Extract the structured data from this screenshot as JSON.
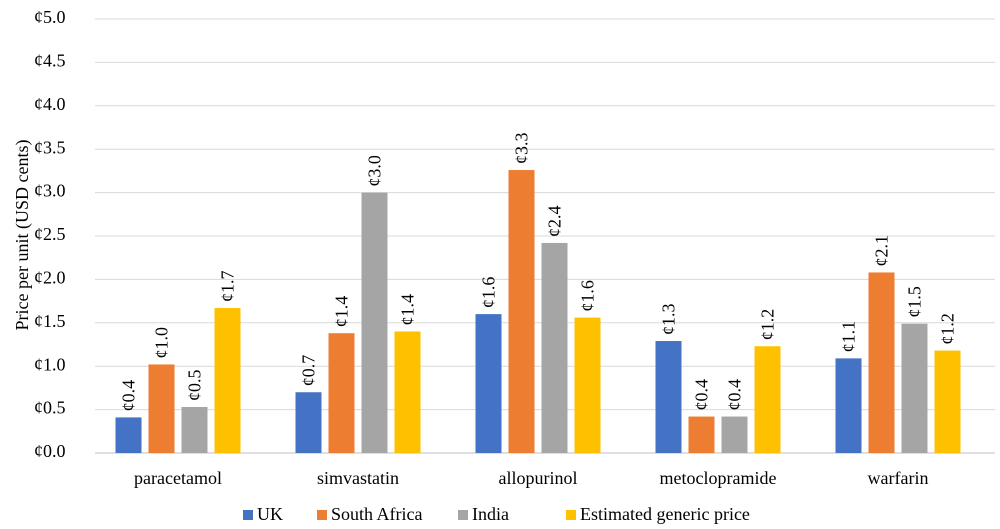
{
  "chart_data": {
    "type": "bar",
    "title": "",
    "partial_title": "",
    "ylabel": "Price per unit (USD cents)",
    "xlabel": "",
    "ylim": [
      0,
      5
    ],
    "ytick_step": 0.5,
    "value_prefix": "¢",
    "grid": true,
    "legend_position": "bottom",
    "categories": [
      "paracetamol",
      "simvastatin",
      "allopurinol",
      "metoclopramide",
      "warfarin"
    ],
    "series": [
      {
        "name": "UK",
        "color": "#4472C4",
        "values": [
          0.4,
          0.7,
          1.6,
          1.3,
          1.1
        ]
      },
      {
        "name": "South Africa",
        "color": "#ED7D31",
        "values": [
          1.0,
          1.4,
          3.3,
          0.4,
          2.1
        ]
      },
      {
        "name": "India",
        "color": "#A5A5A5",
        "values": [
          0.5,
          3.0,
          2.4,
          0.4,
          1.5
        ]
      },
      {
        "name": "Estimated generic price",
        "color": "#FFC000",
        "values": [
          1.7,
          1.4,
          1.6,
          1.2,
          1.2
        ]
      }
    ],
    "bar_heights": [
      [
        0.41,
        0.7,
        1.6,
        1.29,
        1.09
      ],
      [
        1.02,
        1.38,
        3.26,
        0.42,
        2.08
      ],
      [
        0.53,
        3.0,
        2.42,
        0.42,
        1.49
      ],
      [
        1.67,
        1.4,
        1.56,
        1.23,
        1.18
      ]
    ]
  }
}
